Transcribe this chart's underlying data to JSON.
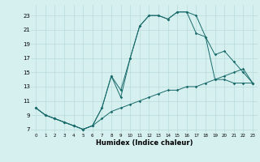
{
  "xlabel": "Humidex (Indice chaleur)",
  "background_color": "#d6f0f0",
  "grid_color": "#b8dada",
  "line_color": "#1a6b6b",
  "xlim": [
    -0.5,
    23.5
  ],
  "ylim": [
    6.5,
    24.5
  ],
  "xticks": [
    0,
    1,
    2,
    3,
    4,
    5,
    6,
    7,
    8,
    9,
    10,
    11,
    12,
    13,
    14,
    15,
    16,
    17,
    18,
    19,
    20,
    21,
    22,
    23
  ],
  "yticks": [
    7,
    9,
    11,
    13,
    15,
    17,
    19,
    21,
    23
  ],
  "line1_x": [
    0,
    1,
    2,
    3,
    4,
    5,
    6,
    7,
    8,
    9,
    10,
    11,
    12,
    13,
    14,
    15,
    16,
    17,
    18,
    19,
    20,
    21,
    22,
    23
  ],
  "line1_y": [
    10,
    9,
    8.5,
    8,
    7.5,
    7,
    7.5,
    8.5,
    9.5,
    10,
    10.5,
    11,
    11.5,
    12,
    12.5,
    12.5,
    13,
    13,
    13.5,
    14,
    14.5,
    15,
    15.5,
    13.5
  ],
  "line2_x": [
    0,
    1,
    2,
    3,
    4,
    5,
    6,
    7,
    8,
    9,
    10,
    11,
    12,
    13,
    14,
    15,
    16,
    17,
    18,
    19,
    20,
    21,
    22,
    23
  ],
  "line2_y": [
    10,
    9,
    8.5,
    8,
    7.5,
    7,
    7.5,
    10,
    14.5,
    11.5,
    17,
    21.5,
    23,
    23,
    22.5,
    23.5,
    23.5,
    20.5,
    20,
    17.5,
    18,
    16.5,
    15,
    13.5
  ],
  "line3_x": [
    0,
    1,
    2,
    3,
    4,
    5,
    6,
    7,
    8,
    9,
    10,
    11,
    12,
    13,
    14,
    15,
    16,
    17,
    18,
    19,
    20,
    21,
    22,
    23
  ],
  "line3_y": [
    10,
    9,
    8.5,
    8,
    7.5,
    7,
    7.5,
    10,
    14.5,
    12.5,
    17,
    21.5,
    23,
    23,
    22.5,
    23.5,
    23.5,
    23,
    20,
    14,
    14,
    13.5,
    13.5,
    13.5
  ]
}
